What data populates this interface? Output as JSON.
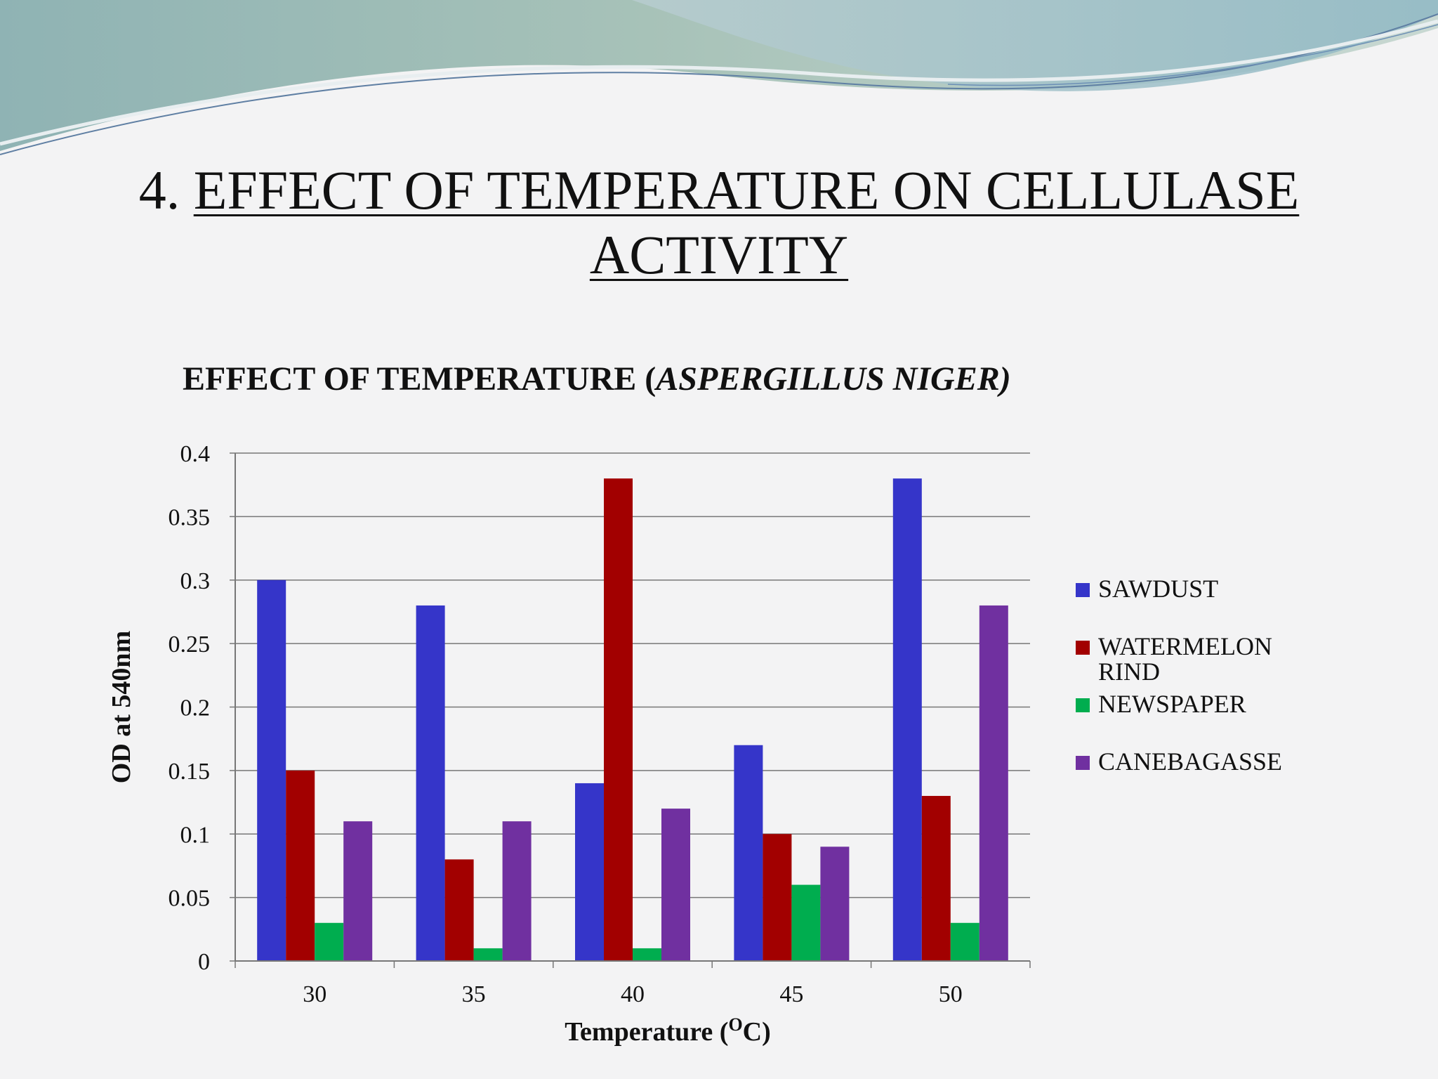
{
  "slide": {
    "title_prefix": "4. ",
    "title_underlined_line1": "EFFECT OF TEMPERATURE ON CELLULASE",
    "title_underlined_line2": "ACTIVITY"
  },
  "chart_data": {
    "type": "bar",
    "title_plain": "EFFECT OF TEMPERATURE (",
    "title_italic": "ASPERGILLUS NIGER)",
    "xlabel": "Temperature (OC)",
    "xlabel_main": "Temperature (",
    "xlabel_sup": "O",
    "xlabel_end": "C)",
    "ylabel": "OD at 540nm",
    "ylim": [
      0,
      0.4
    ],
    "yticks": [
      "0",
      "0.05",
      "0.1",
      "0.15",
      "0.2",
      "0.25",
      "0.3",
      "0.35",
      "0.4"
    ],
    "categories": [
      "30",
      "35",
      "40",
      "45",
      "50"
    ],
    "grid": true,
    "legend_position": "right",
    "series": [
      {
        "name": "SAWDUST",
        "color": "#3535c9",
        "values": [
          0.3,
          0.28,
          0.14,
          0.17,
          0.38
        ]
      },
      {
        "name": "WATERMELON RIND",
        "name_line1": "WATERMELON",
        "name_line2": "RIND",
        "color": "#a20000",
        "values": [
          0.15,
          0.08,
          0.38,
          0.1,
          0.13
        ]
      },
      {
        "name": "NEWSPAPER",
        "color": "#00ad4f",
        "values": [
          0.03,
          0.01,
          0.01,
          0.06,
          0.03
        ]
      },
      {
        "name": "CANEBAGASSE",
        "color": "#7030a0",
        "values": [
          0.11,
          0.11,
          0.12,
          0.09,
          0.28
        ]
      }
    ]
  }
}
